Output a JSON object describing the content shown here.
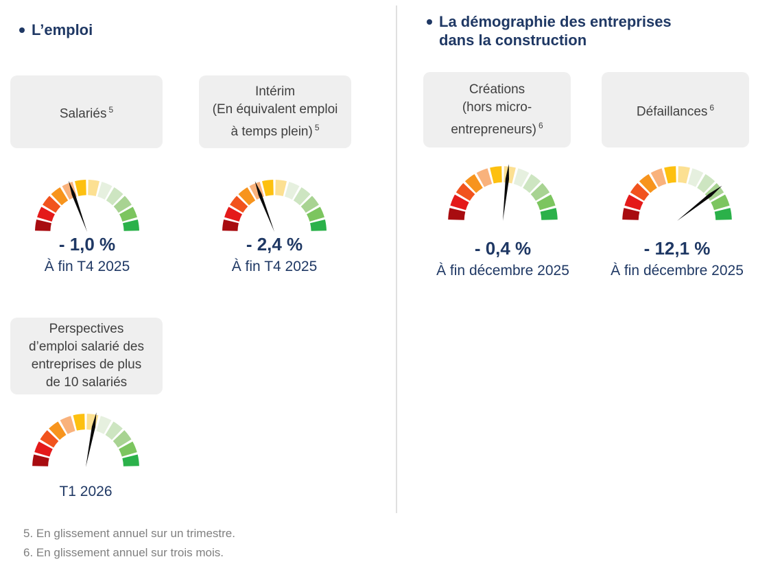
{
  "left": {
    "heading": "L’emploi",
    "footnotes": [
      "5. En glissement annuel sur un trimestre.",
      "6. En glissement annuel sur trois mois."
    ]
  },
  "right": {
    "heading_lines": [
      "La démographie des entreprises",
      "dans la construction"
    ]
  },
  "gauge": {
    "segment_colors": [
      "#a80c10",
      "#e41a1a",
      "#f1531d",
      "#f7941d",
      "#f9b27c",
      "#fdc010",
      "#fce092",
      "#e6f0df",
      "#cde5c1",
      "#a8d392",
      "#7cc55f",
      "#2bb14a"
    ],
    "needle_color": "#0a0a0a"
  },
  "metrics": {
    "salaries": {
      "card_lines": [
        "Salariés"
      ],
      "sup": "5",
      "value": "- 1,0 %",
      "caption": "À fin T4 2025",
      "needle_angle": -20
    },
    "interim": {
      "card_lines": [
        "Intérim",
        "(En équivalent emploi",
        "à temps plein)"
      ],
      "sup": "5",
      "value": "- 2,4 %",
      "caption": "À fin T4 2025",
      "needle_angle": -21
    },
    "perspectives": {
      "card_lines": [
        "Perspectives",
        "d’emploi salarié des",
        "entreprises de plus",
        "de 10 salariés"
      ],
      "sup": "",
      "caption": "T1 2026",
      "needle_angle": 11
    },
    "creations": {
      "card_lines": [
        "Créations",
        "(hors micro-",
        "entrepreneurs)"
      ],
      "sup": "6",
      "value": "- 0,4 %",
      "caption": "À fin décembre 2025",
      "needle_angle": 6
    },
    "defaillances": {
      "card_lines": [
        "Défaillances"
      ],
      "sup": "6",
      "value": "- 12,1 %",
      "caption": "À fin décembre 2025",
      "needle_angle": 52
    }
  },
  "chart_data": [
    {
      "type": "gauge",
      "label": "Salariés",
      "footnote_ref": "5",
      "value": -1.0,
      "value_label": "- 1,0 %",
      "period": "À fin T4 2025",
      "needle_angle_from_vertical_deg": -20,
      "segments": 12,
      "scale": "dark red (left) to bright green (right), 180° arc"
    },
    {
      "type": "gauge",
      "label": "Intérim (En équivalent emploi à temps plein)",
      "footnote_ref": "5",
      "value": -2.4,
      "value_label": "- 2,4 %",
      "period": "À fin T4 2025",
      "needle_angle_from_vertical_deg": -21,
      "segments": 12,
      "scale": "dark red (left) to bright green (right), 180° arc"
    },
    {
      "type": "gauge",
      "label": "Perspectives d’emploi salarié des entreprises de plus de 10 salariés",
      "period": "T1 2026",
      "needle_angle_from_vertical_deg": 11,
      "segments": 12,
      "scale": "dark red (left) to bright green (right), 180° arc"
    },
    {
      "type": "gauge",
      "label": "Créations (hors micro-entrepreneurs)",
      "footnote_ref": "6",
      "value": -0.4,
      "value_label": "- 0,4 %",
      "period": "À fin décembre 2025",
      "needle_angle_from_vertical_deg": 6,
      "segments": 12,
      "scale": "dark red (left) to bright green (right), 180° arc"
    },
    {
      "type": "gauge",
      "label": "Défaillances",
      "footnote_ref": "6",
      "value": -12.1,
      "value_label": "- 12,1 %",
      "period": "À fin décembre 2025",
      "needle_angle_from_vertical_deg": 52,
      "segments": 12,
      "scale": "dark red (left) to bright green (right), 180° arc"
    }
  ]
}
